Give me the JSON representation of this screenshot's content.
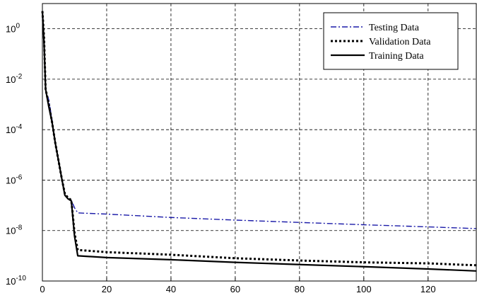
{
  "chart_data": {
    "type": "line",
    "title": "",
    "xlabel": "",
    "ylabel": "",
    "xlim": [
      0,
      135
    ],
    "ylim_log10": [
      -10,
      1
    ],
    "y_scale": "log",
    "grid": true,
    "x_ticks": [
      0,
      20,
      40,
      60,
      80,
      100,
      120
    ],
    "x_tick_labels": [
      "0",
      "20",
      "40",
      "60",
      "80",
      "100",
      "120"
    ],
    "y_ticks_log10": [
      0,
      -2,
      -4,
      -6,
      -8,
      -10
    ],
    "y_tick_labels": [
      {
        "base": "10",
        "exp": "0"
      },
      {
        "base": "10",
        "exp": "-2"
      },
      {
        "base": "10",
        "exp": "-4"
      },
      {
        "base": "10",
        "exp": "-6"
      },
      {
        "base": "10",
        "exp": "-8"
      },
      {
        "base": "10",
        "exp": "-10"
      }
    ],
    "legend_position": "top-right",
    "series": [
      {
        "name": "Testing Data",
        "color": "#1a1aa8",
        "style": "dashdot",
        "x": [
          0,
          0.5,
          1,
          2,
          3,
          4,
          5,
          6,
          7,
          8,
          9,
          10,
          11,
          20,
          40,
          60,
          80,
          100,
          120,
          135
        ],
        "y": [
          3.0,
          0.2,
          0.004,
          0.0015,
          0.00025,
          3e-05,
          6e-06,
          1.2e-06,
          2.5e-07,
          1.8e-07,
          1.6e-07,
          8e-08,
          5e-08,
          4.5e-08,
          3.3e-08,
          2.6e-08,
          2.1e-08,
          1.7e-08,
          1.4e-08,
          1.2e-08
        ]
      },
      {
        "name": "Validation Data",
        "color": "#000000",
        "style": "dotted",
        "x": [
          0,
          0.5,
          1,
          2,
          3,
          4,
          5,
          6,
          7,
          8,
          9,
          10,
          11,
          20,
          40,
          60,
          80,
          100,
          120,
          135
        ],
        "y": [
          5.0,
          0.5,
          0.004,
          0.001,
          0.0002,
          3e-05,
          6e-06,
          1.2e-06,
          2.8e-07,
          2e-07,
          1.6e-07,
          8e-09,
          1.7e-09,
          1.4e-09,
          1.1e-09,
          8e-10,
          6.5e-10,
          5.5e-10,
          5e-10,
          4.2e-10
        ]
      },
      {
        "name": "Training Data",
        "color": "#000000",
        "style": "solid",
        "x": [
          0,
          0.5,
          1,
          2,
          3,
          4,
          5,
          6,
          7,
          8,
          9,
          10,
          11,
          20,
          40,
          60,
          80,
          100,
          120,
          135
        ],
        "y": [
          5.0,
          0.3,
          0.004,
          0.0008,
          0.0002,
          3e-05,
          6e-06,
          1.2e-06,
          2.5e-07,
          1.8e-07,
          1.5e-07,
          6e-09,
          1e-09,
          8.5e-10,
          7e-10,
          5.5e-10,
          4.5e-10,
          3.7e-10,
          3e-10,
          2.5e-10
        ]
      }
    ]
  }
}
